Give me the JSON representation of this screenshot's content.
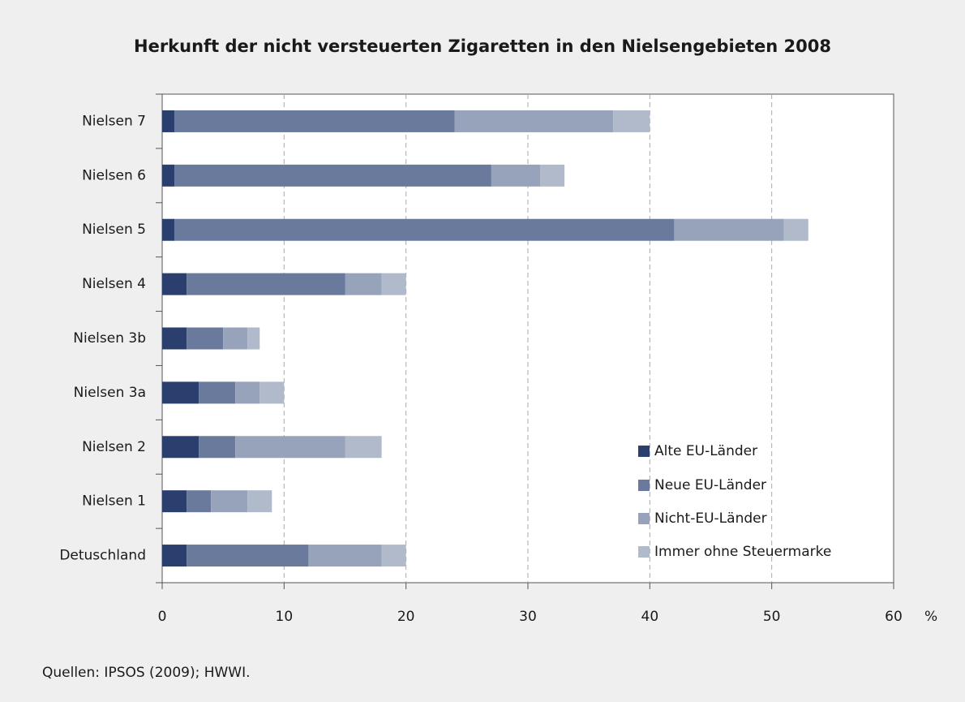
{
  "chart_data": {
    "type": "stacked_bar_horizontal",
    "title": "Herkunft der nicht versteuerten Zigaretten in den Nielsengebieten 2008",
    "categories": [
      "Nielsen 7",
      "Nielsen 6",
      "Nielsen 5",
      "Nielsen 4",
      "Nielsen 3b",
      "Nielsen 3a",
      "Nielsen 2",
      "Nielsen 1",
      "Detuschland"
    ],
    "series": [
      {
        "name": "Alte EU-Länder",
        "color": "#2b3f6e",
        "values": [
          1,
          1,
          1,
          2,
          2,
          3,
          3,
          2,
          2
        ]
      },
      {
        "name": "Neue EU-Länder",
        "color": "#6a7a9c",
        "values": [
          23,
          26,
          41,
          13,
          3,
          3,
          3,
          2,
          10
        ]
      },
      {
        "name": "Nicht-EU-Länder",
        "color": "#97a3bb",
        "values": [
          13,
          4,
          9,
          3,
          2,
          2,
          9,
          3,
          6
        ]
      },
      {
        "name": "Immer ohne Steuermarke",
        "color": "#b0bacb",
        "values": [
          3,
          2,
          2,
          2,
          1,
          2,
          3,
          2,
          2
        ]
      }
    ],
    "xlabel": "%",
    "xlim": [
      0,
      60
    ],
    "xticks": [
      0,
      10,
      20,
      30,
      40,
      50,
      60
    ],
    "grid": true,
    "legend": "lower right",
    "source": "Quellen: IPSOS (2009); HWWI."
  }
}
